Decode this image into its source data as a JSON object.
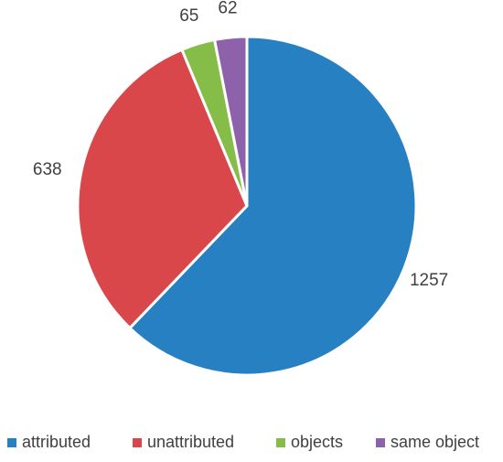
{
  "chart_data": {
    "type": "pie",
    "title": "",
    "categories": [
      "attributed",
      "unattributed",
      "objects",
      "same object"
    ],
    "values": [
      1257,
      638,
      65,
      62
    ],
    "colors": [
      "#2680C2",
      "#D9474A",
      "#86BC48",
      "#8E62AA"
    ],
    "start_angle_deg": 0,
    "direction": "clockwise",
    "legend": {
      "position": "bottom",
      "entries": [
        "attributed",
        "unattributed",
        "objects",
        "same object"
      ]
    },
    "data_labels": [
      "1257",
      "638",
      "65",
      "62"
    ]
  }
}
